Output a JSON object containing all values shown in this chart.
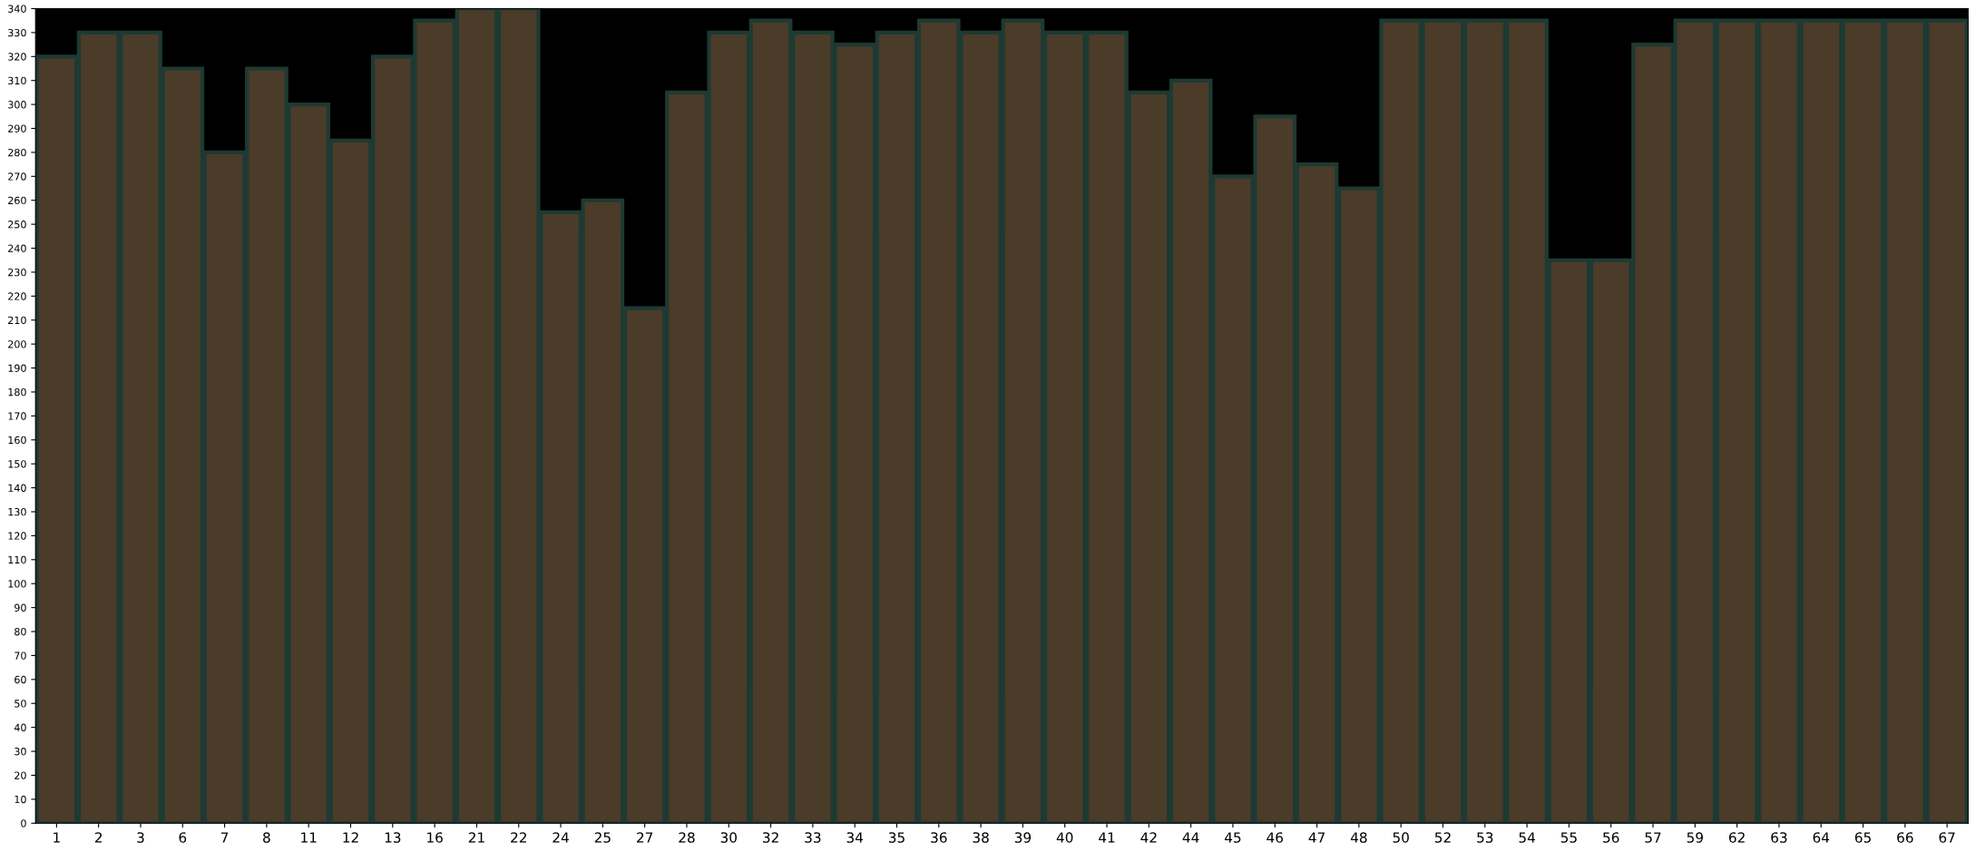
{
  "chart_data": {
    "type": "bar",
    "categories": [
      "1",
      "2",
      "3",
      "6",
      "7",
      "8",
      "11",
      "12",
      "13",
      "16",
      "21",
      "22",
      "24",
      "25",
      "27",
      "28",
      "30",
      "32",
      "33",
      "34",
      "35",
      "36",
      "38",
      "39",
      "40",
      "41",
      "42",
      "44",
      "45",
      "46",
      "47",
      "48",
      "50",
      "52",
      "53",
      "54",
      "55",
      "56",
      "57",
      "59",
      "62",
      "63",
      "64",
      "65",
      "66",
      "67"
    ],
    "values": [
      320,
      330,
      330,
      315,
      280,
      315,
      300,
      285,
      320,
      335,
      340,
      340,
      255,
      260,
      215,
      305,
      330,
      335,
      330,
      325,
      330,
      335,
      330,
      335,
      330,
      330,
      305,
      310,
      270,
      295,
      275,
      265,
      335,
      335,
      335,
      335,
      235,
      235,
      325,
      335,
      335,
      335,
      335,
      335,
      335,
      335
    ],
    "color": "#4b3b29",
    "ylim": [
      0,
      340
    ],
    "yticks": [
      0,
      10,
      20,
      30,
      40,
      50,
      60,
      70,
      80,
      90,
      100,
      110,
      120,
      130,
      140,
      150,
      160,
      170,
      180,
      190,
      200,
      210,
      220,
      230,
      240,
      250,
      260,
      270,
      280,
      290,
      300,
      310,
      320,
      330,
      340
    ],
    "grid": false
  }
}
